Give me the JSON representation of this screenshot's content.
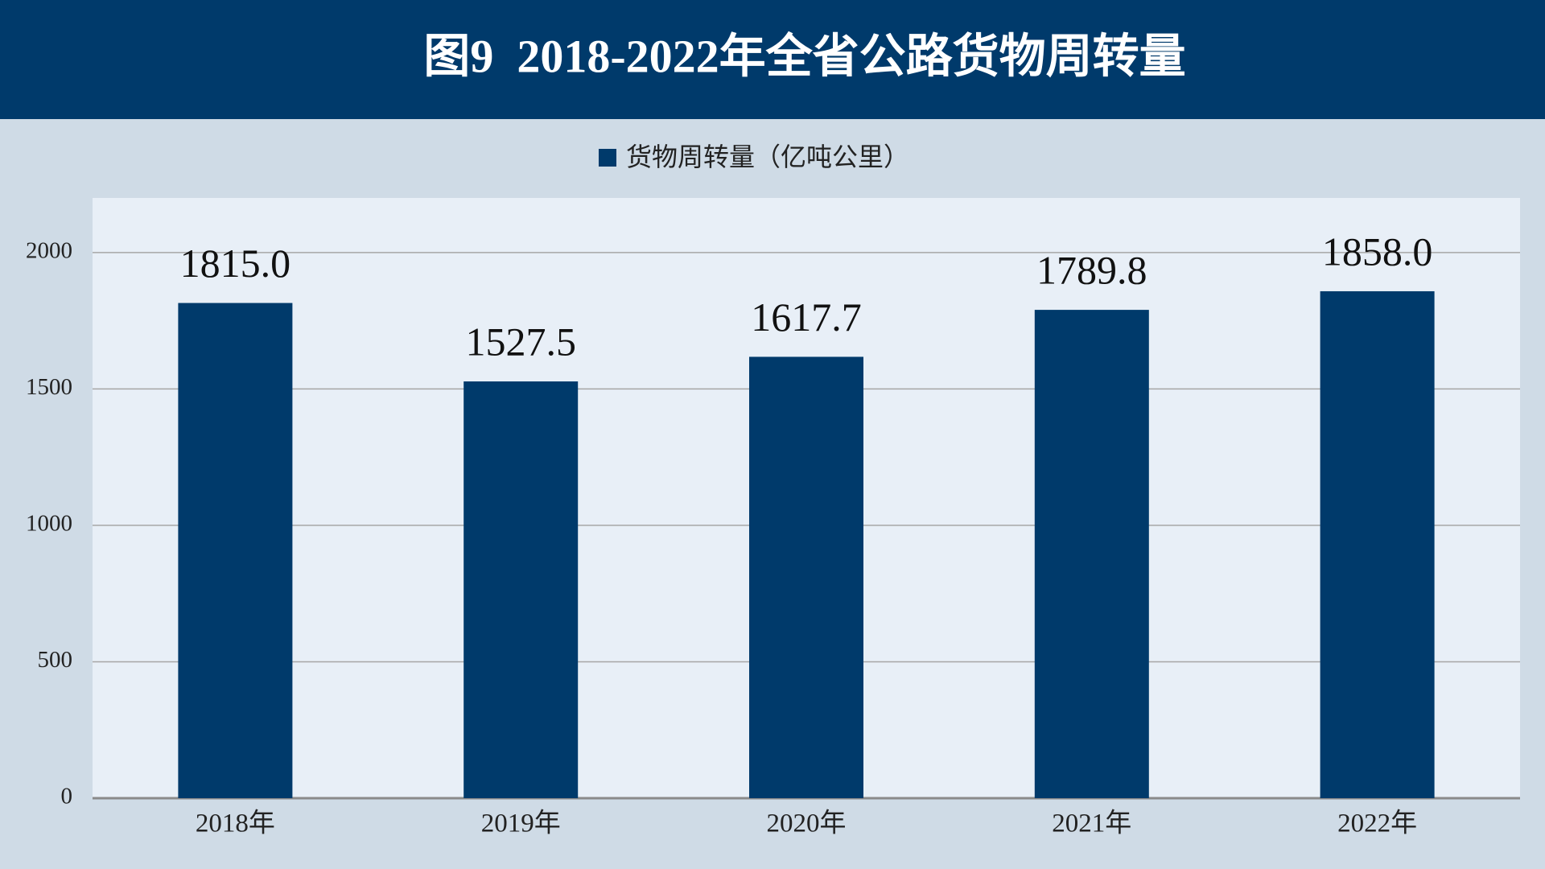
{
  "chart_data": {
    "type": "bar",
    "title": "图9  2018-2022年全省公路货物周转量",
    "categories": [
      "2018年",
      "2019年",
      "2020年",
      "2021年",
      "2022年"
    ],
    "series": [
      {
        "name": "货物周转量（亿吨公里）",
        "color": "#003a6b",
        "values": [
          1815.0,
          1527.5,
          1617.7,
          1789.8,
          1858.0
        ],
        "value_labels": [
          "1815.0",
          "1527.5",
          "1617.7",
          "1789.8",
          "1858.0"
        ]
      }
    ],
    "ylim": [
      0,
      2200
    ],
    "yticks": [
      0,
      500,
      1000,
      1500,
      2000
    ],
    "grid": true,
    "legend": "top"
  }
}
